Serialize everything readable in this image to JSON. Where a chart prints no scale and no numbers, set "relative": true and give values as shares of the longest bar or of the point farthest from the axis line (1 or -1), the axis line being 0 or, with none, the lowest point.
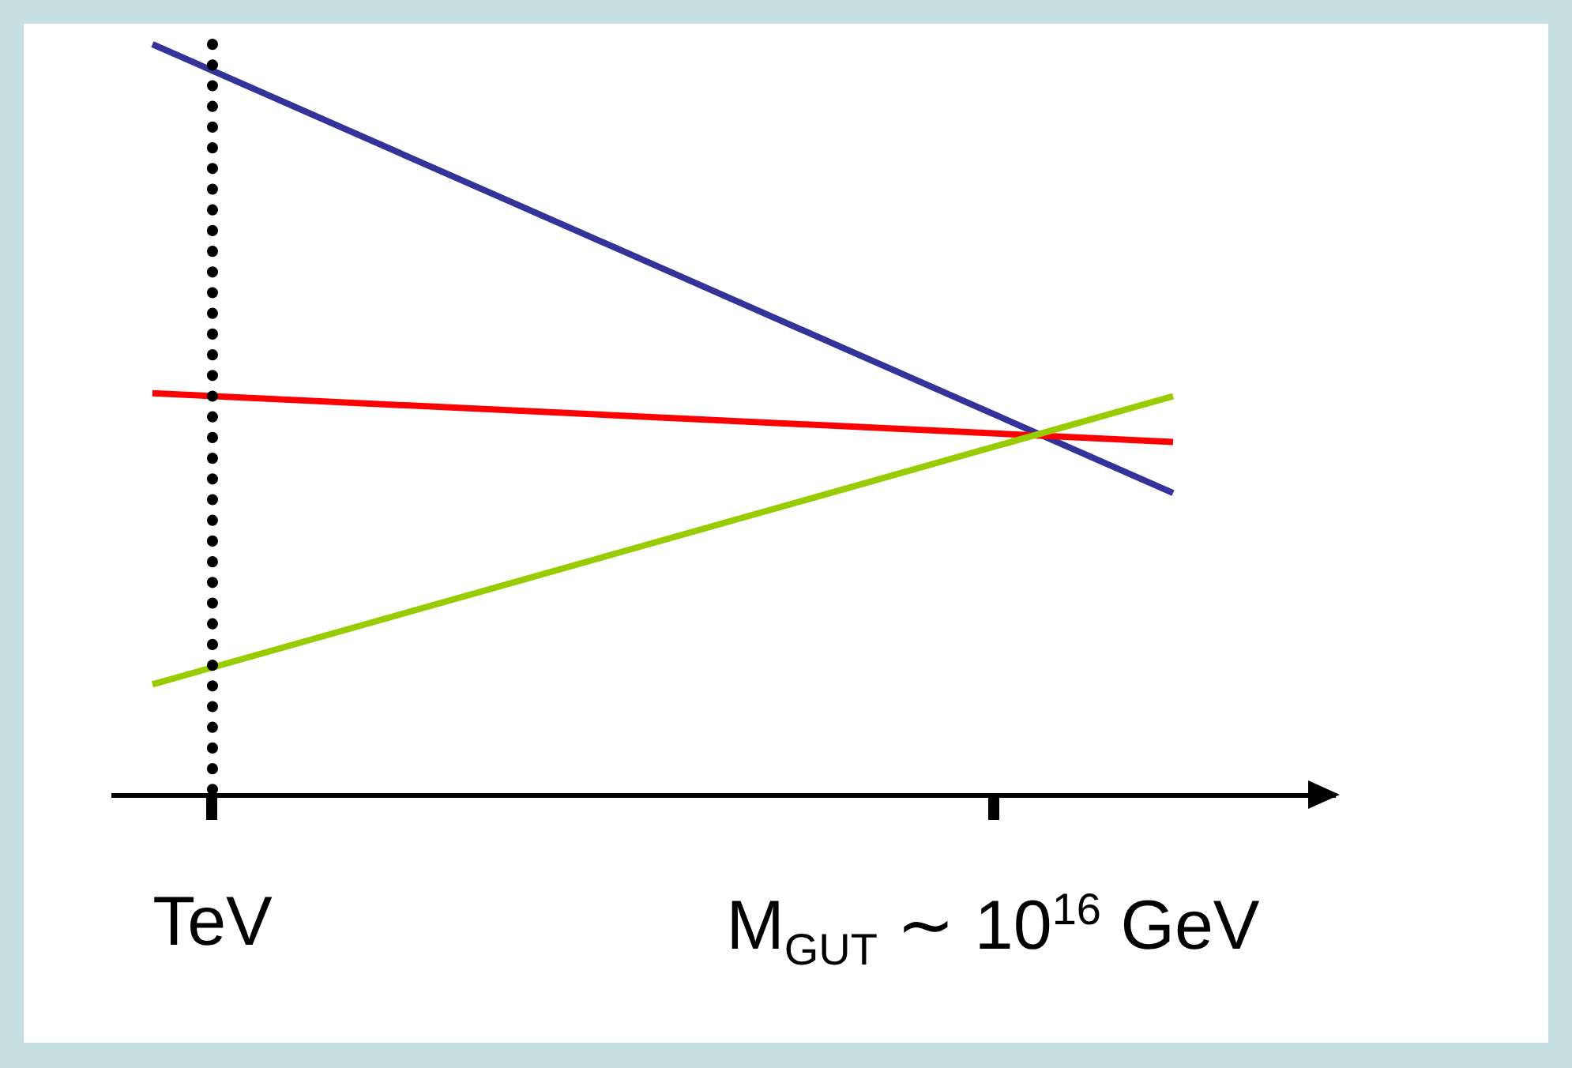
{
  "chart_data": {
    "type": "line",
    "relative": true,
    "categories": [
      null,
      "TeV",
      null,
      null,
      null,
      null,
      null,
      null,
      null,
      null,
      null,
      null,
      null,
      null,
      "M$_{GUT}$ ∼ 10$^{16}$ GeV",
      null,
      null,
      null,
      null,
      null
    ],
    "series": [
      {
        "color": "#333399",
        "values": [
          1.0,
          null,
          null,
          null,
          null,
          null,
          null,
          null,
          null,
          null,
          null,
          null,
          null,
          null,
          null,
          null,
          null,
          0.402,
          null,
          null
        ]
      },
      {
        "color": "#ff0000",
        "values": [
          0.535,
          null,
          null,
          null,
          null,
          null,
          null,
          null,
          null,
          null,
          null,
          null,
          null,
          null,
          null,
          null,
          null,
          0.47,
          null,
          null
        ]
      },
      {
        "color": "#99cc00",
        "values": [
          0.147,
          null,
          null,
          null,
          null,
          null,
          null,
          null,
          null,
          null,
          null,
          null,
          null,
          null,
          null,
          null,
          null,
          0.531,
          null,
          null
        ]
      }
    ],
    "ref_lines": [
      {
        "axis": "x",
        "value": "TeV",
        "line_style": "dotted",
        "color": "#000000"
      }
    ]
  }
}
